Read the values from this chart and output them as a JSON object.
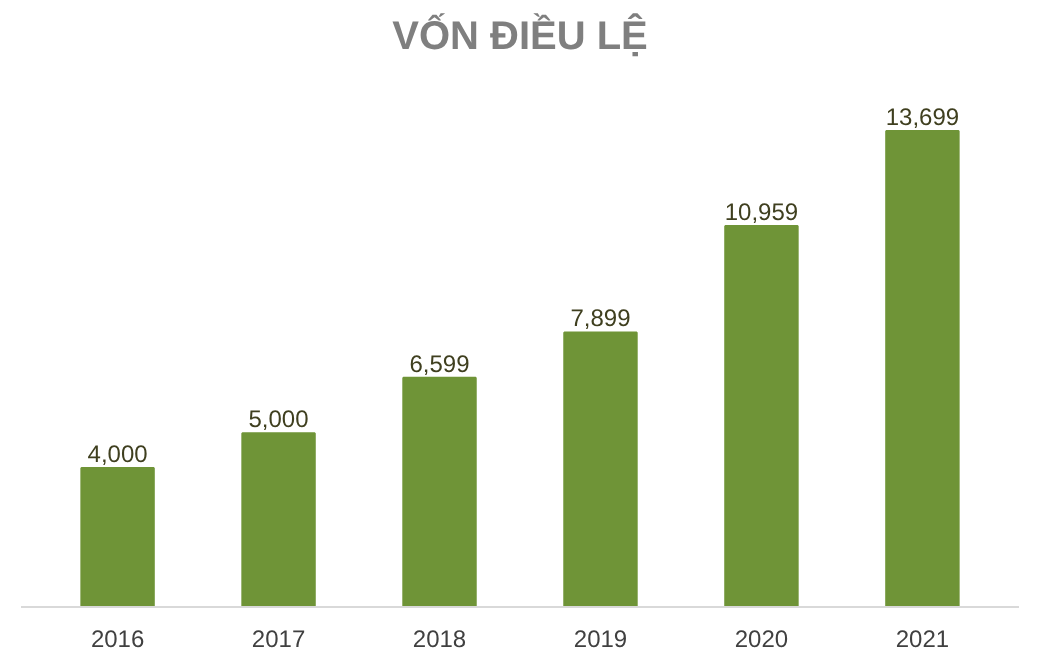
{
  "chart_data": {
    "type": "bar",
    "title": "VỐN ĐIỀU LỆ",
    "categories": [
      "2016",
      "2017",
      "2018",
      "2019",
      "2020",
      "2021"
    ],
    "values": [
      4000,
      5000,
      6599,
      7899,
      10959,
      13699
    ],
    "value_labels": [
      "4,000",
      "5,000",
      "6,599",
      "7,899",
      "10,959",
      "13,699"
    ],
    "color": "#6f9437",
    "grid": false
  }
}
